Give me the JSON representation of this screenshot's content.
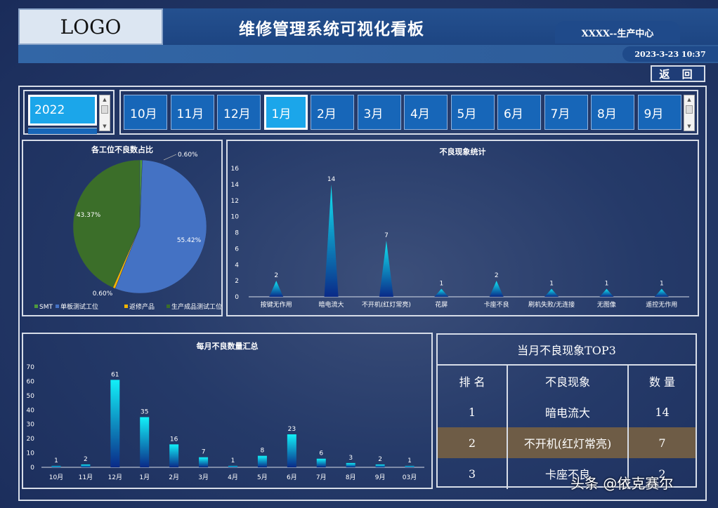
{
  "header": {
    "logo": "LOGO",
    "title": "维修管理系统可视化看板",
    "center": "XXXX--生产中心",
    "datetime": "2023-3-23 10:37",
    "back_label": "返 回"
  },
  "year_selector": {
    "selected": "2022"
  },
  "months": {
    "items": [
      "10月",
      "11月",
      "12月",
      "1月",
      "2月",
      "3月",
      "4月",
      "5月",
      "6月",
      "7月",
      "8月",
      "9月"
    ],
    "selected": "1月"
  },
  "pie": {
    "title": "各工位不良数占比",
    "colors": [
      "#4e9a3c",
      "#4472c4",
      "#f0b400",
      "#3b6e29"
    ],
    "legend": [
      "SMT",
      "单板测试工位",
      "返修产品",
      "生产成品测试工位"
    ]
  },
  "bar": {
    "title": "不良现象统计"
  },
  "monthly": {
    "title": "每月不良数量汇总"
  },
  "top3": {
    "title": "当月不良现象TOP3",
    "headers": [
      "排 名",
      "不良现象",
      "数 量"
    ],
    "rows": [
      {
        "rank": "1",
        "item": "暗电流大",
        "count": "14"
      },
      {
        "rank": "2",
        "item": "不开机(红灯常亮)",
        "count": "7"
      },
      {
        "rank": "3",
        "item": "卡座不良",
        "count": "2"
      }
    ],
    "highlight_color": "#6e5c46"
  },
  "watermark": "头条 @依克赛尔",
  "chart_data": [
    {
      "type": "pie",
      "title": "各工位不良数占比",
      "labels": [
        "SMT",
        "单板测试工位",
        "返修产品",
        "生产成品测试工位"
      ],
      "values": [
        0.6,
        55.42,
        0.6,
        43.37
      ],
      "value_labels": [
        "0.60%",
        "55.42%",
        "0.60%",
        "43.37%"
      ],
      "legend_position": "bottom"
    },
    {
      "type": "bar",
      "title": "不良现象统计",
      "categories": [
        "按键无作用",
        "暗电流大",
        "不开机(红灯常亮)",
        "花屏",
        "卡座不良",
        "刷机失败/无连接",
        "无图像",
        "遥控无作用"
      ],
      "values": [
        2,
        14,
        7,
        1,
        2,
        1,
        1,
        1
      ],
      "ylim": [
        0,
        16
      ],
      "yticks": [
        0,
        2,
        4,
        6,
        8,
        10,
        12,
        14,
        16
      ]
    },
    {
      "type": "bar",
      "title": "每月不良数量汇总",
      "categories": [
        "10月",
        "11月",
        "12月",
        "1月",
        "2月",
        "3月",
        "4月",
        "5月",
        "6月",
        "7月",
        "8月",
        "9月",
        "03月"
      ],
      "values": [
        1,
        2,
        61,
        35,
        16,
        7,
        1,
        8,
        23,
        6,
        3,
        2,
        1
      ],
      "ylim": [
        0,
        70
      ],
      "yticks": [
        0,
        10,
        20,
        30,
        40,
        50,
        60,
        70
      ]
    }
  ]
}
